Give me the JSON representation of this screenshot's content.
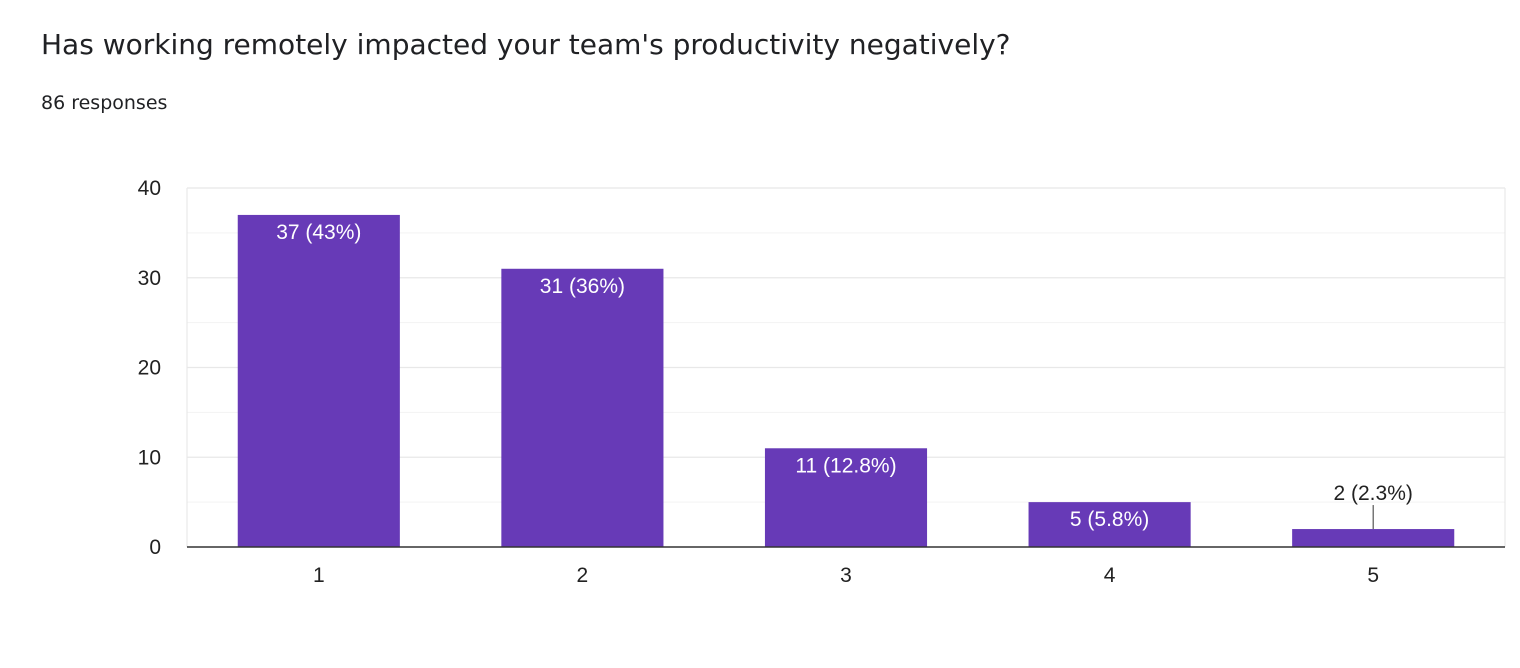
{
  "question": {
    "title": "Has working remotely impacted your team's productivity negatively?",
    "responses": "86 responses"
  },
  "colors": {
    "bar": "#673ab7",
    "label_inside": "#ffffff",
    "label_outside": "#222222",
    "gridline": "#e8e8e8",
    "axis": "#333333"
  },
  "chart_data": {
    "type": "bar",
    "categories": [
      "1",
      "2",
      "3",
      "4",
      "5"
    ],
    "values": [
      37,
      31,
      11,
      5,
      2
    ],
    "data_labels": [
      "37 (43%)",
      "31 (36%)",
      "11 (12.8%)",
      "5 (5.8%)",
      "2 (2.3%)"
    ],
    "yticks": [
      0,
      10,
      20,
      30,
      40
    ],
    "ylim": [
      0,
      40
    ],
    "grid": true,
    "legend": "none"
  }
}
